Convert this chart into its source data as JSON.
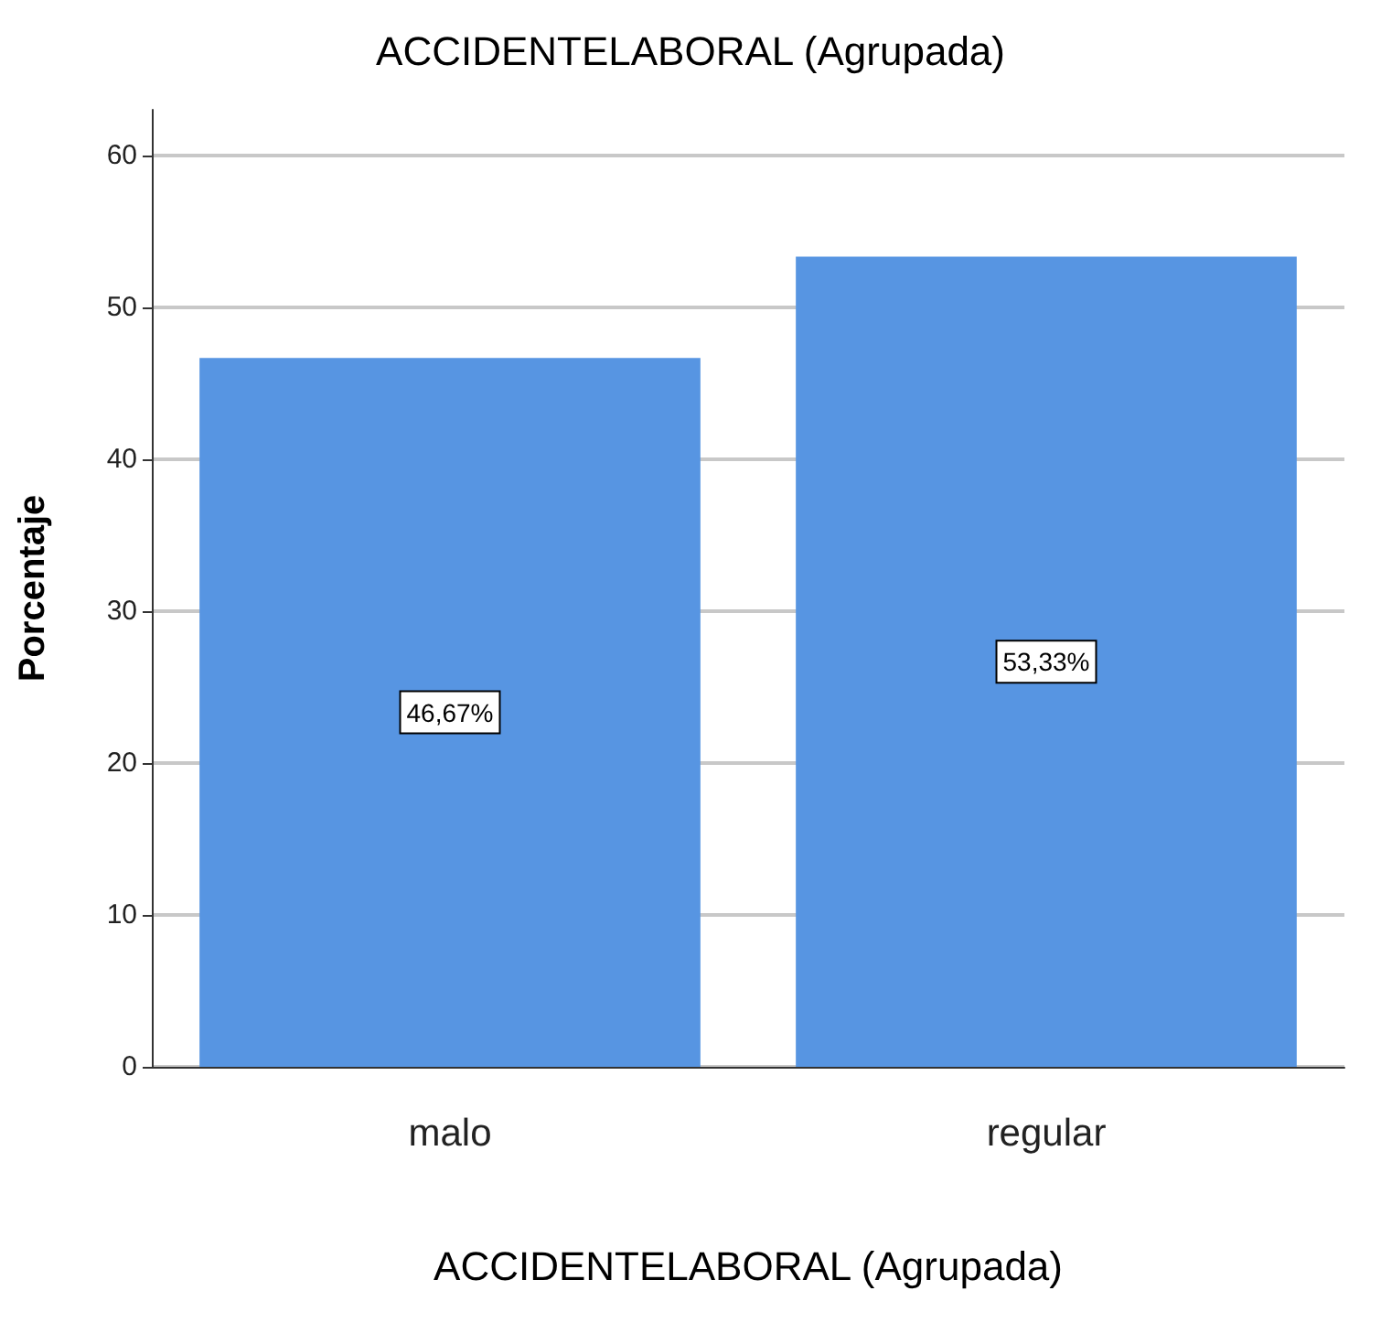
{
  "chart_data": {
    "type": "bar",
    "title": "ACCIDENTELABORAL (Agrupada)",
    "xlabel": "ACCIDENTELABORAL (Agrupada)",
    "ylabel": "Porcentaje",
    "categories": [
      "malo",
      "regular"
    ],
    "values": [
      46.67,
      53.33
    ],
    "value_labels": [
      "46,67%",
      "53,33%"
    ],
    "color": "#5795e2",
    "ylim": [
      0,
      63
    ],
    "yticks": [
      0,
      10,
      20,
      30,
      40,
      50,
      60
    ],
    "grid": "y"
  }
}
